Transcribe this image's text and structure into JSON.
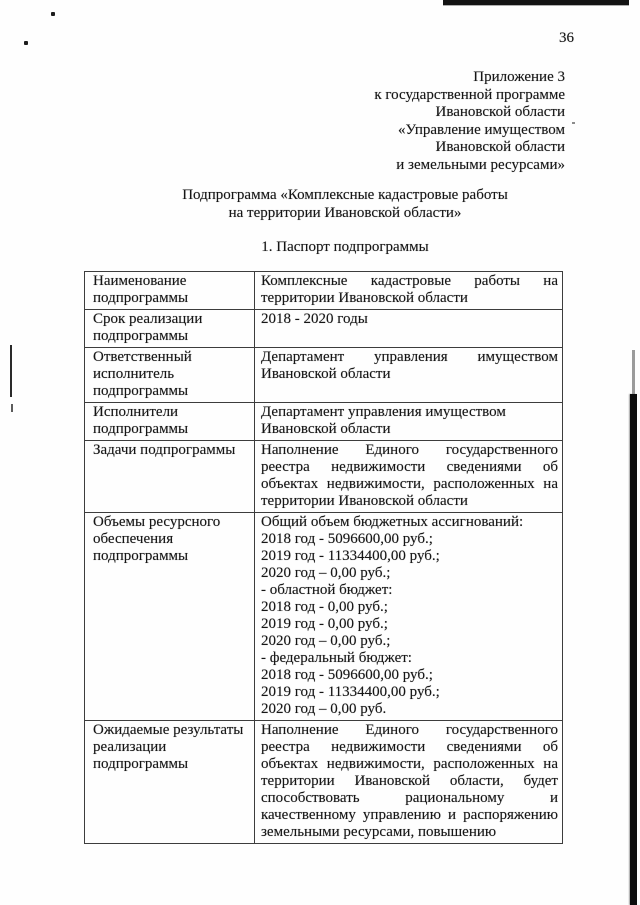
{
  "page": {
    "number": "36"
  },
  "header": {
    "appendix_lines": [
      "Приложение 3",
      "к государственной программе",
      "Ивановской области",
      "«Управление имуществом",
      "Ивановской области",
      "и земельными ресурсами»"
    ],
    "subtitle_line1": "Подпрограмма «Комплексные кадастровые работы",
    "subtitle_line2": "на территории Ивановской области»",
    "section_title": "1. Паспорт подпрограммы"
  },
  "table": {
    "rows": [
      {
        "label": "Наименование подпрограммы",
        "value": "Комплексные кадастровые работы на территории Ивановской области"
      },
      {
        "label": "Срок реализации подпрограммы",
        "value": "2018 - 2020 годы"
      },
      {
        "label": "Ответственный исполнитель подпрограммы",
        "value": "Департамент управления имуществом Ивановской области"
      },
      {
        "label": "Исполнители подпрограммы",
        "value": "Департамент управления имуществом Ивановской области"
      },
      {
        "label": "Задачи подпрограммы",
        "value": "Наполнение Единого государственного реестра недвижимости сведениями об объектах недвижимости, расположенных на территории Ивановской области"
      },
      {
        "label": "Объемы ресурсного обеспечения подпрограммы",
        "value": "Общий объем бюджетных ассигнований:\n2018 год - 5096600,00 руб.;\n2019 год - 11334400,00 руб.;\n2020 год – 0,00 руб.;\n- областной бюджет:\n2018 год - 0,00 руб.;\n2019 год - 0,00 руб.;\n2020 год – 0,00 руб.;\n- федеральный бюджет:\n2018 год - 5096600,00 руб.;\n2019 год - 11334400,00 руб.;\n2020 год – 0,00 руб."
      },
      {
        "label": "Ожидаемые результаты реализации подпрограммы",
        "value": "Наполнение Единого государственного реестра недвижимости сведениями об объектах недвижимости, расположенных на территории Ивановской области, будет способствовать рациональному и качественному управлению и распоряжению земельными ресурсами, повышению"
      }
    ]
  }
}
